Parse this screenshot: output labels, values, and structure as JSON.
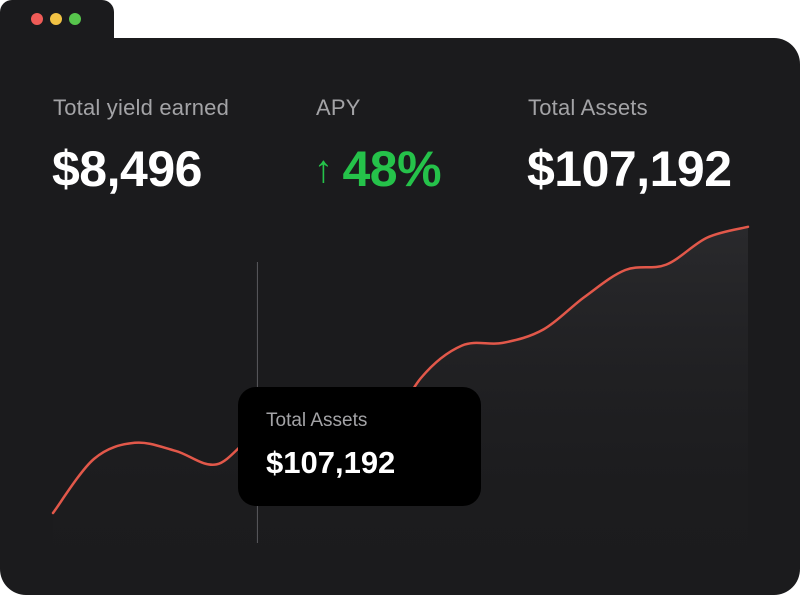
{
  "window": {
    "controls": [
      "close",
      "minimize",
      "maximize"
    ],
    "colors": {
      "close": "#ef5b57",
      "minimize": "#f1c244",
      "maximize": "#57c54c"
    }
  },
  "stats": {
    "yield_label": "Total yield earned",
    "yield_value": "$8,496",
    "apy_label": "APY",
    "apy_arrow": "↑",
    "apy_value": "48%",
    "assets_label": "Total Assets",
    "assets_value": "$107,192"
  },
  "tooltip": {
    "label": "Total Assets",
    "value": "$107,192"
  },
  "colors": {
    "line": "#e2584a",
    "positive": "#25c24a",
    "background": "#1b1b1d"
  },
  "chart_data": {
    "type": "line",
    "series": [
      {
        "values": [
          10,
          30,
          36,
          33,
          28,
          39,
          35,
          32,
          36,
          60,
          72,
          73,
          78,
          90,
          100,
          102,
          112,
          116
        ]
      }
    ],
    "highlight_index": 5
  }
}
